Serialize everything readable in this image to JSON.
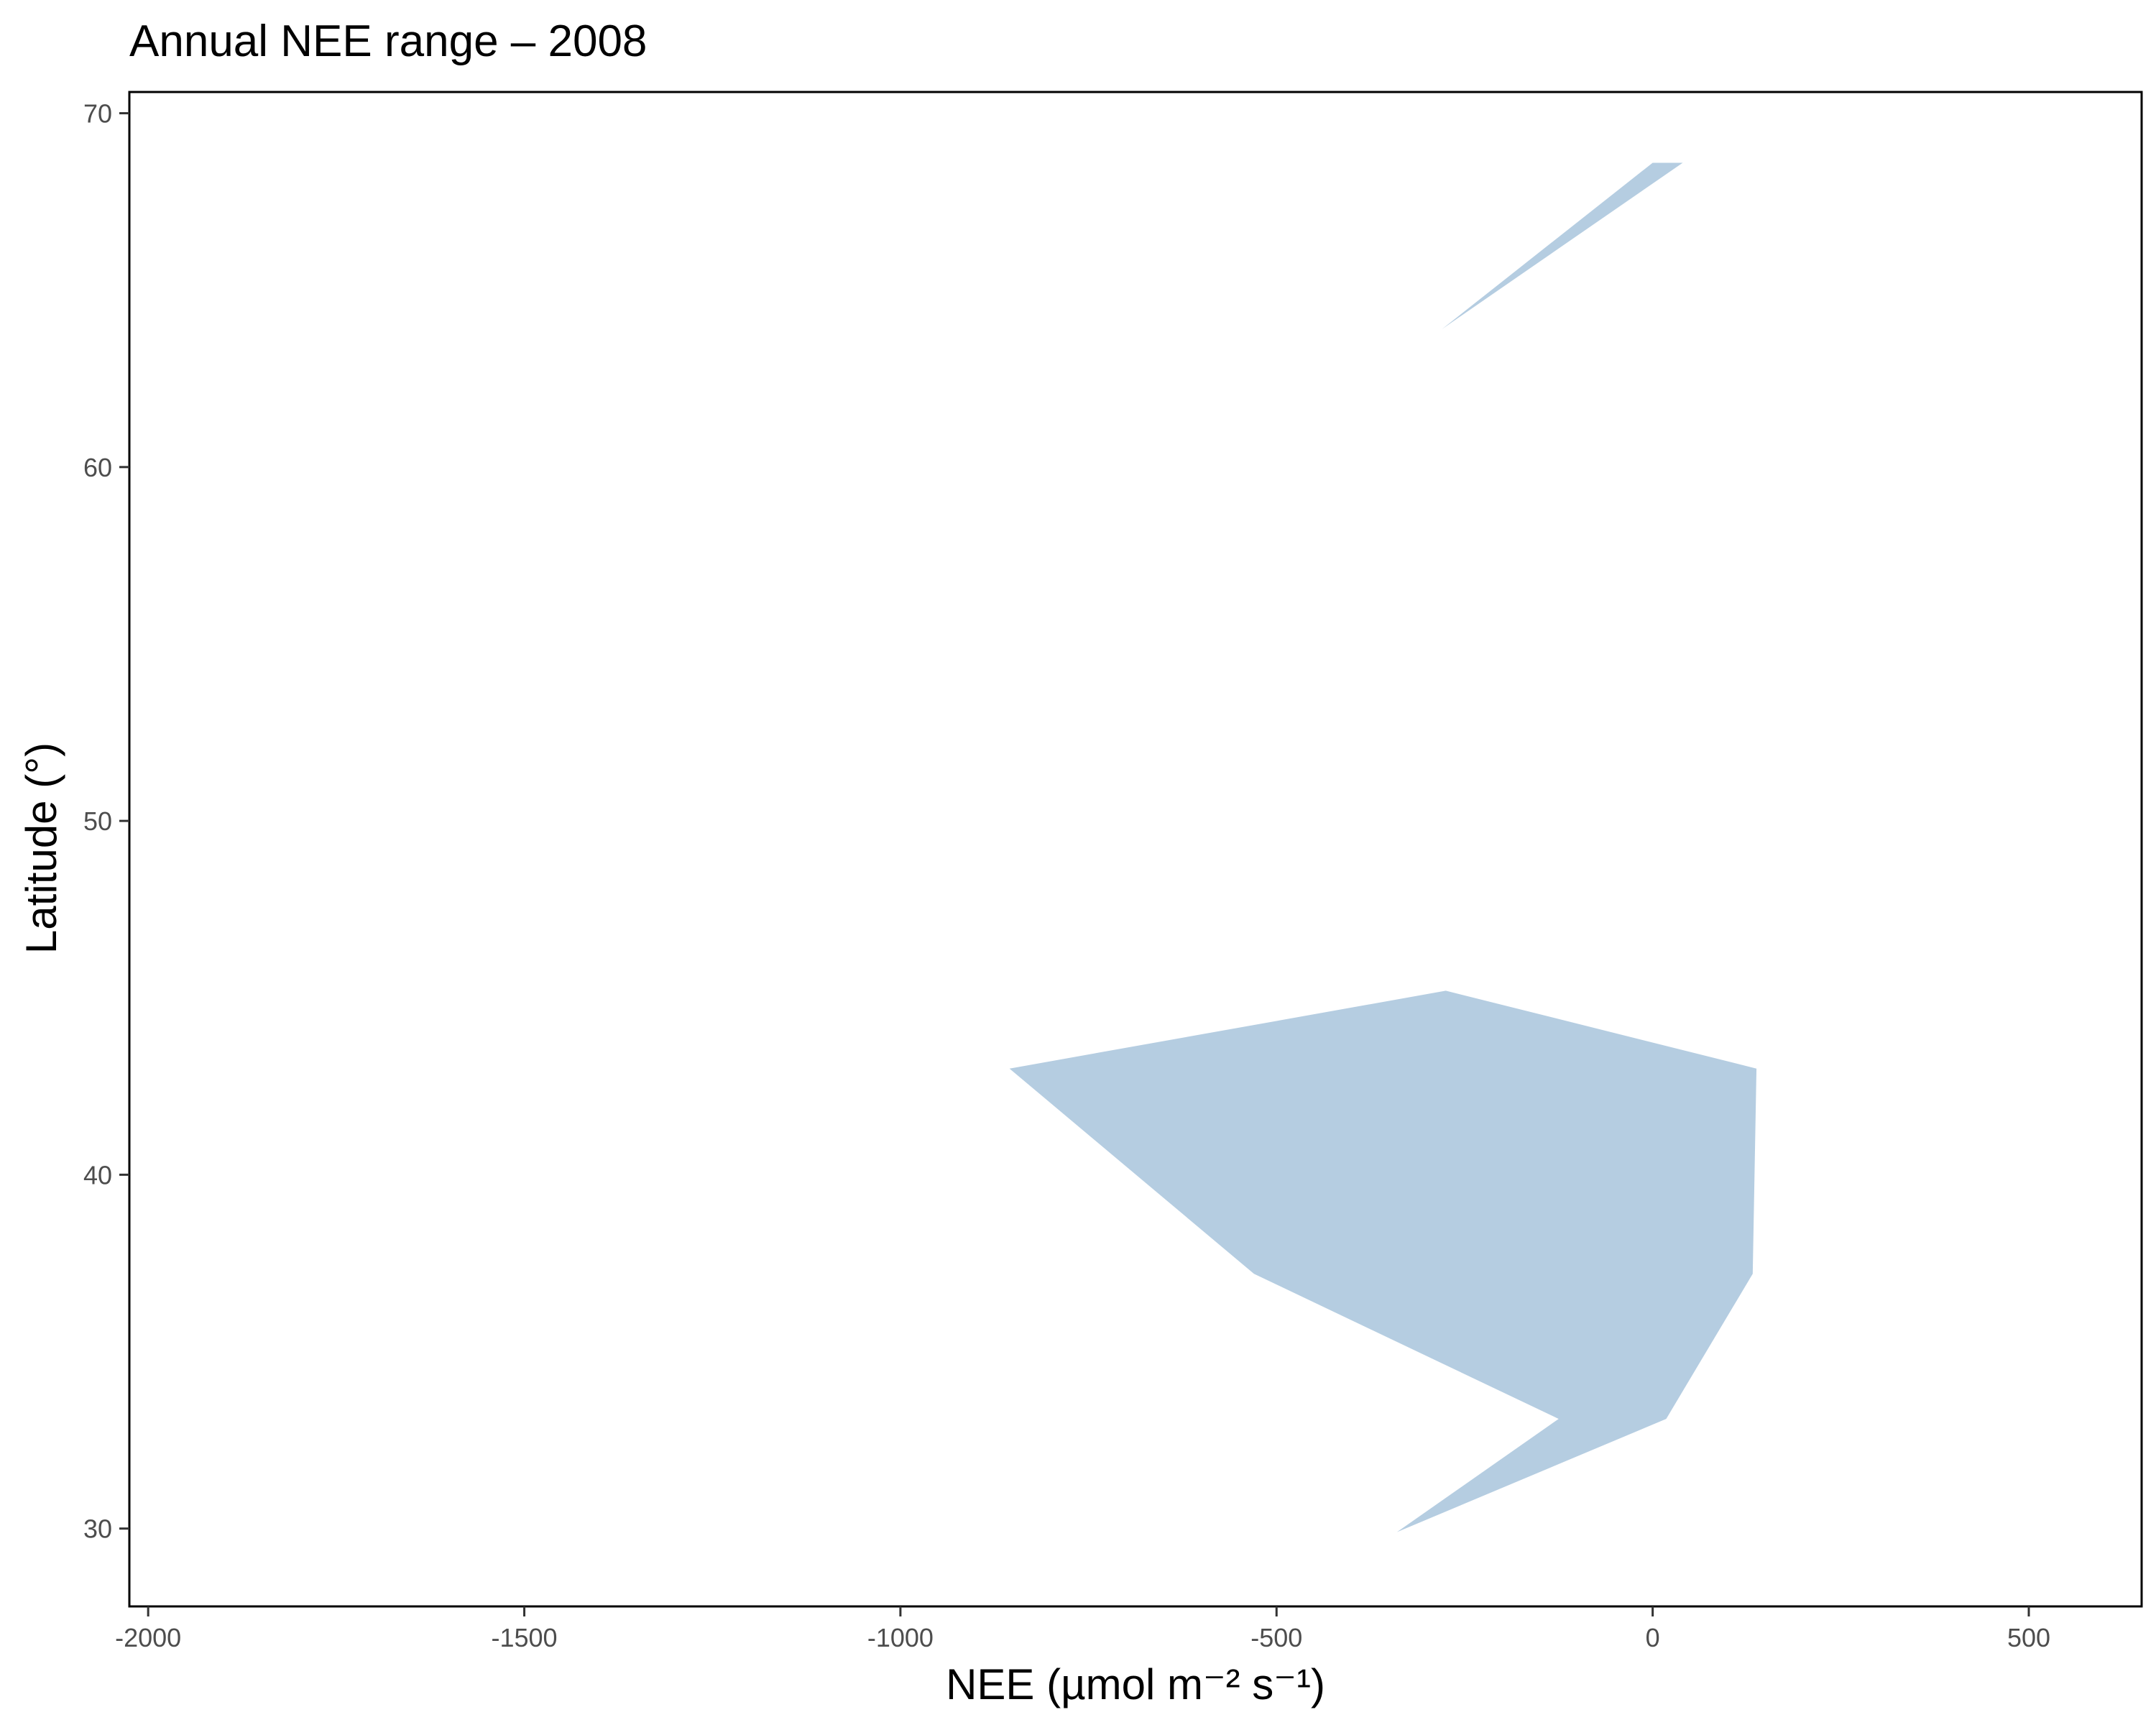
{
  "chart_data": {
    "type": "area",
    "title": "Annual NEE range – 2008",
    "xlabel": "NEE (µmol m⁻² s⁻¹)",
    "ylabel": "Latitude (°)",
    "xlim": [
      -2025,
      650
    ],
    "ylim": [
      27.8,
      70.6
    ],
    "xticks": [
      -2000,
      -1500,
      -1000,
      -500,
      0,
      500
    ],
    "yticks": [
      30,
      40,
      50,
      60,
      70
    ],
    "grid": false,
    "legend": "none",
    "fill_color": "#b5cde1",
    "series": [
      {
        "ribbons": [
          {
            "latitude": [
              29.9,
              33.1,
              37.2,
              43.0,
              45.2
            ],
            "nee_min": [
              -340,
              -125,
              -530,
              -855,
              -275
            ],
            "nee_max": [
              -340,
              18,
              133,
              138,
              -275
            ]
          },
          {
            "latitude": [
              63.9,
              68.6
            ],
            "nee_min": [
              -280,
              0
            ],
            "nee_max": [
              -280,
              40
            ]
          }
        ]
      }
    ]
  }
}
